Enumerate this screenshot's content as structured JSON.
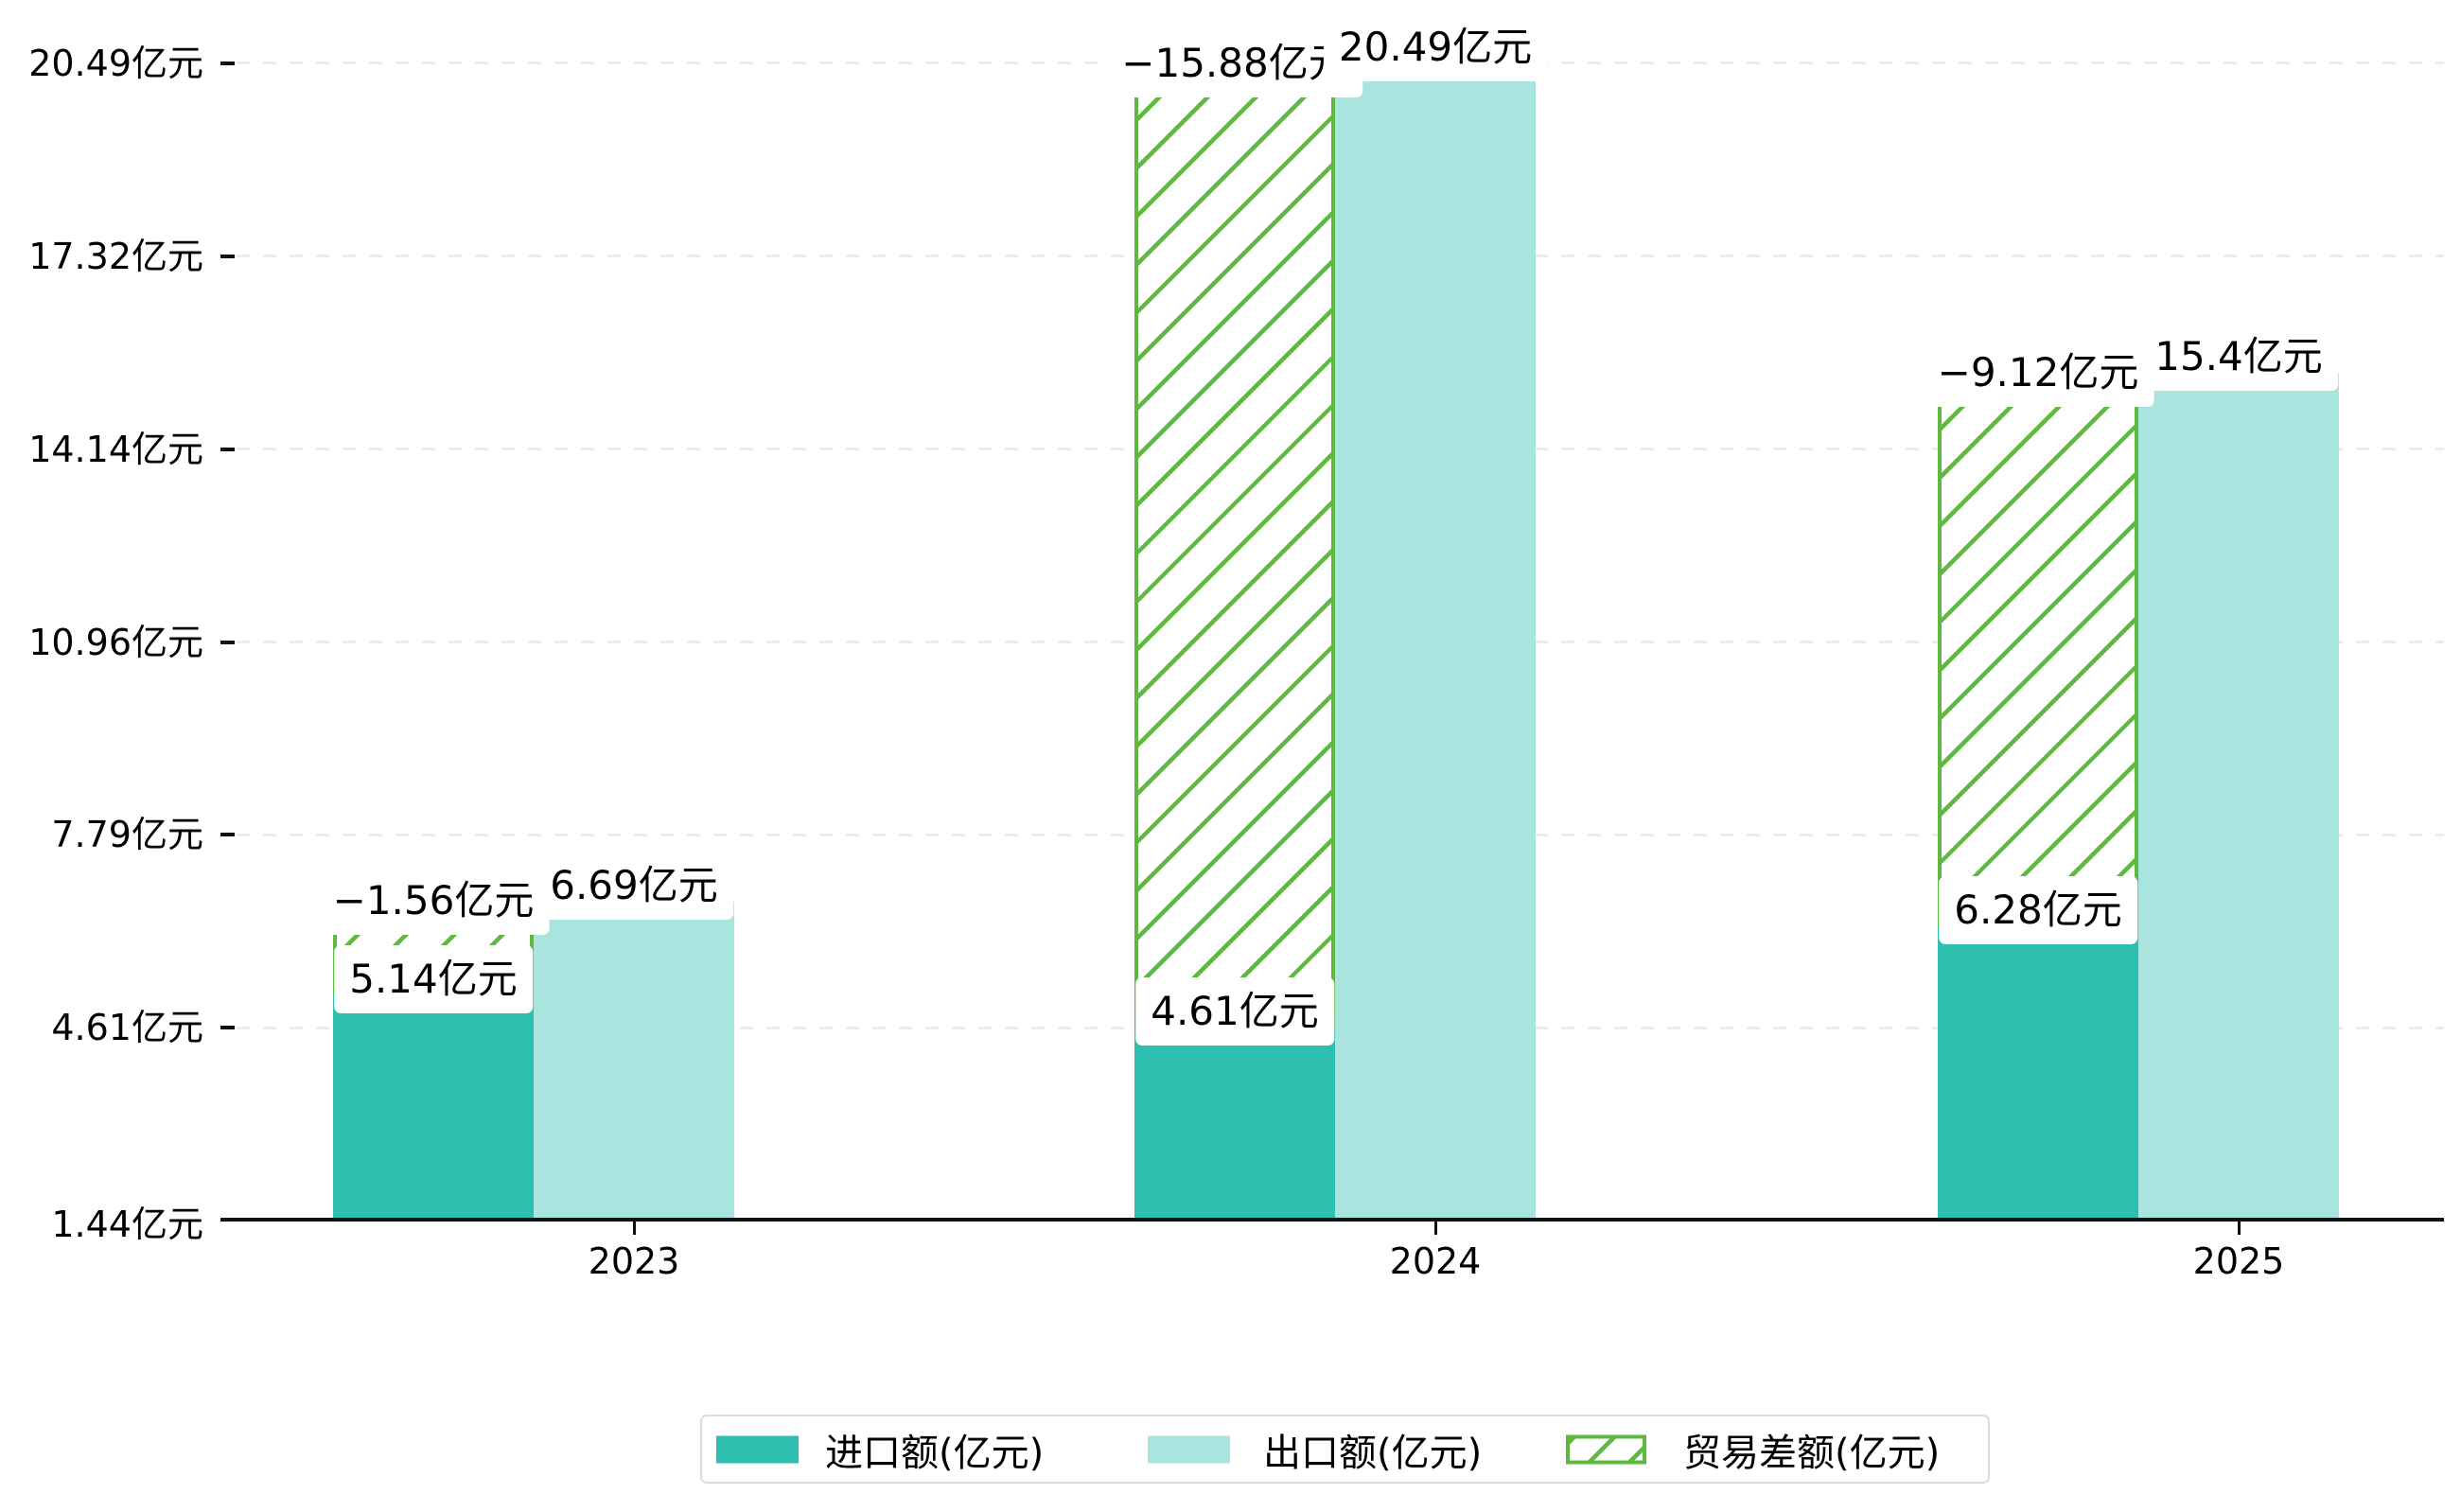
{
  "chart_data": {
    "type": "bar",
    "categories": [
      "2023",
      "2024",
      "2025"
    ],
    "series": [
      {
        "name": "进口额(亿元)",
        "role": "import",
        "values": [
          5.14,
          4.61,
          6.28
        ],
        "labels": [
          "5.14亿元",
          "4.61亿元",
          "6.28亿元"
        ],
        "color": "#2fbfb0",
        "style": "solid"
      },
      {
        "name": "出口额(亿元)",
        "role": "export",
        "values": [
          6.69,
          20.49,
          15.4
        ],
        "labels": [
          "6.69亿元",
          "20.49亿元",
          "15.4亿元"
        ],
        "color": "#a9e5de",
        "style": "solid"
      },
      {
        "name": "贸易差额(亿元)",
        "role": "trade-balance",
        "values": [
          -1.56,
          -15.88,
          -9.12
        ],
        "labels": [
          "−1.56亿元",
          "−15.88亿元",
          "−9.12亿元"
        ],
        "color": "#5fb941",
        "style": "hatched",
        "plotted_as": "absolute value stacked on top of import bar"
      }
    ],
    "y_axis": {
      "unit": "亿元",
      "min": 1.44,
      "max": 20.49,
      "ticks": [
        {
          "value": 20.49,
          "label": "20.49亿元"
        },
        {
          "value": 17.32,
          "label": "17.32亿元"
        },
        {
          "value": 14.14,
          "label": "14.14亿元"
        },
        {
          "value": 10.96,
          "label": "10.96亿元"
        },
        {
          "value": 7.79,
          "label": "7.79亿元"
        },
        {
          "value": 4.61,
          "label": "4.61亿元"
        },
        {
          "value": 1.44,
          "label": "1.44亿元"
        }
      ]
    },
    "grid": {
      "horizontal_dashed": true
    },
    "legend_position": "bottom"
  },
  "colors": {
    "import": "#2fbfb0",
    "export": "#a9e5de",
    "balance": "#5fb941",
    "gridline": "#ececec",
    "axis": "#111111",
    "legend_border": "#dcdcdc",
    "label_background": "#ffffff",
    "text": "#000000"
  }
}
